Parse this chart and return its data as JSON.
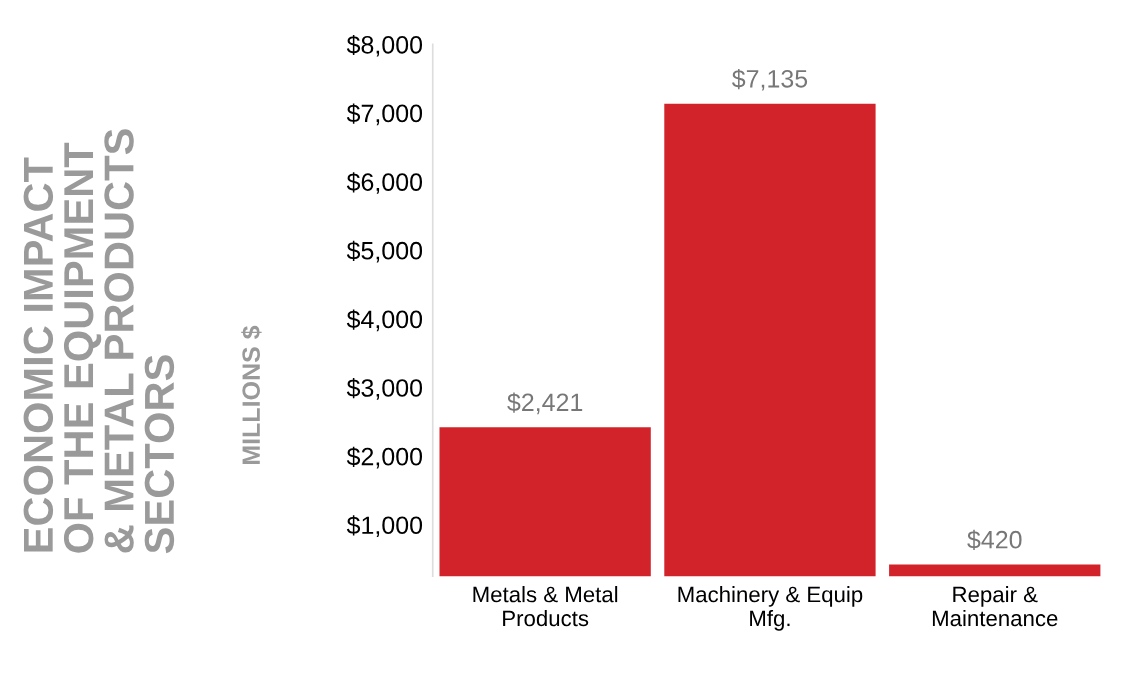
{
  "chart_data": {
    "type": "bar",
    "title": "ECONOMIC IMPACT\nOF THE EQUIPMENT\n& METAL PRODUCTS\nSECTORS",
    "ylabel": "MILLIONS $",
    "categories": [
      "Metals & Metal\nProducts",
      "Machinery & Equip\nMfg.",
      "Repair &\nMaintenance"
    ],
    "values": [
      2421,
      7135,
      420
    ],
    "value_labels": [
      "$2,421",
      "$7,135",
      "$420"
    ],
    "color": "#d2232a",
    "ylim": [
      250,
      8000
    ],
    "yticks": [
      {
        "value": 1000,
        "label": "$1,000"
      },
      {
        "value": 2000,
        "label": "$2,000"
      },
      {
        "value": 3000,
        "label": "$3,000"
      },
      {
        "value": 4000,
        "label": "$4,000"
      },
      {
        "value": 5000,
        "label": "$5,000"
      },
      {
        "value": 6000,
        "label": "$6,000"
      },
      {
        "value": 7000,
        "label": "$7,000"
      },
      {
        "value": 8000,
        "label": "$8,000"
      }
    ],
    "grid": false,
    "legend": false
  }
}
